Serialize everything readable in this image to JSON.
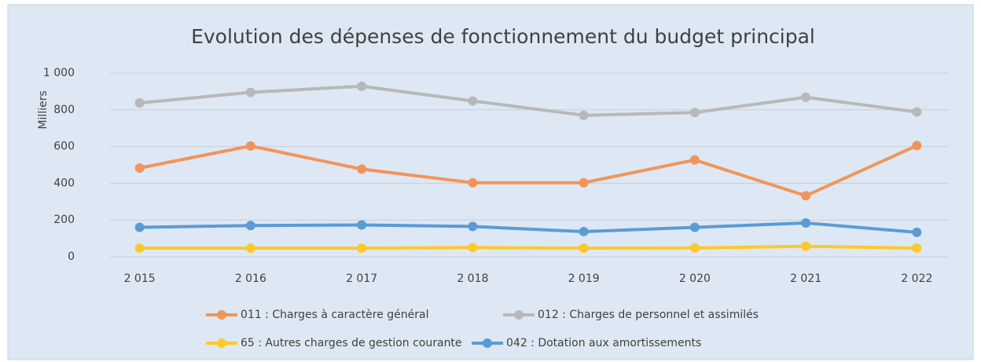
{
  "chart_data": {
    "type": "line",
    "title": "Evolution des dépenses de fonctionnement du budget principal",
    "y_label": "Milliers",
    "categories": [
      "2 015",
      "2 016",
      "2 017",
      "2 018",
      "2 019",
      "2 020",
      "2 021",
      "2 022"
    ],
    "series": [
      {
        "name": "011 : Charges à caractère général",
        "color": "#f0955a",
        "values": [
          483,
          603,
          477,
          403,
          403,
          527,
          332,
          605
        ]
      },
      {
        "name": "012 : Charges de personnel et assimilés",
        "color": "#b8b8b8",
        "values": [
          837,
          895,
          928,
          848,
          770,
          785,
          868,
          788
        ]
      },
      {
        "name": "65 : Autres charges de gestion courante",
        "color": "#fcc92c",
        "values": [
          47,
          47,
          47,
          50,
          47,
          48,
          57,
          47
        ]
      },
      {
        "name": "042 : Dotation aux amortissements",
        "color": "#5b9bd5",
        "values": [
          160,
          170,
          173,
          165,
          137,
          160,
          184,
          133
        ]
      }
    ],
    "ylim": [
      0,
      1000
    ],
    "yticks": [
      0,
      200,
      400,
      600,
      800,
      {
        "value": 1000,
        "label": "1 000"
      }
    ],
    "grid": true,
    "legend": "bottom"
  }
}
